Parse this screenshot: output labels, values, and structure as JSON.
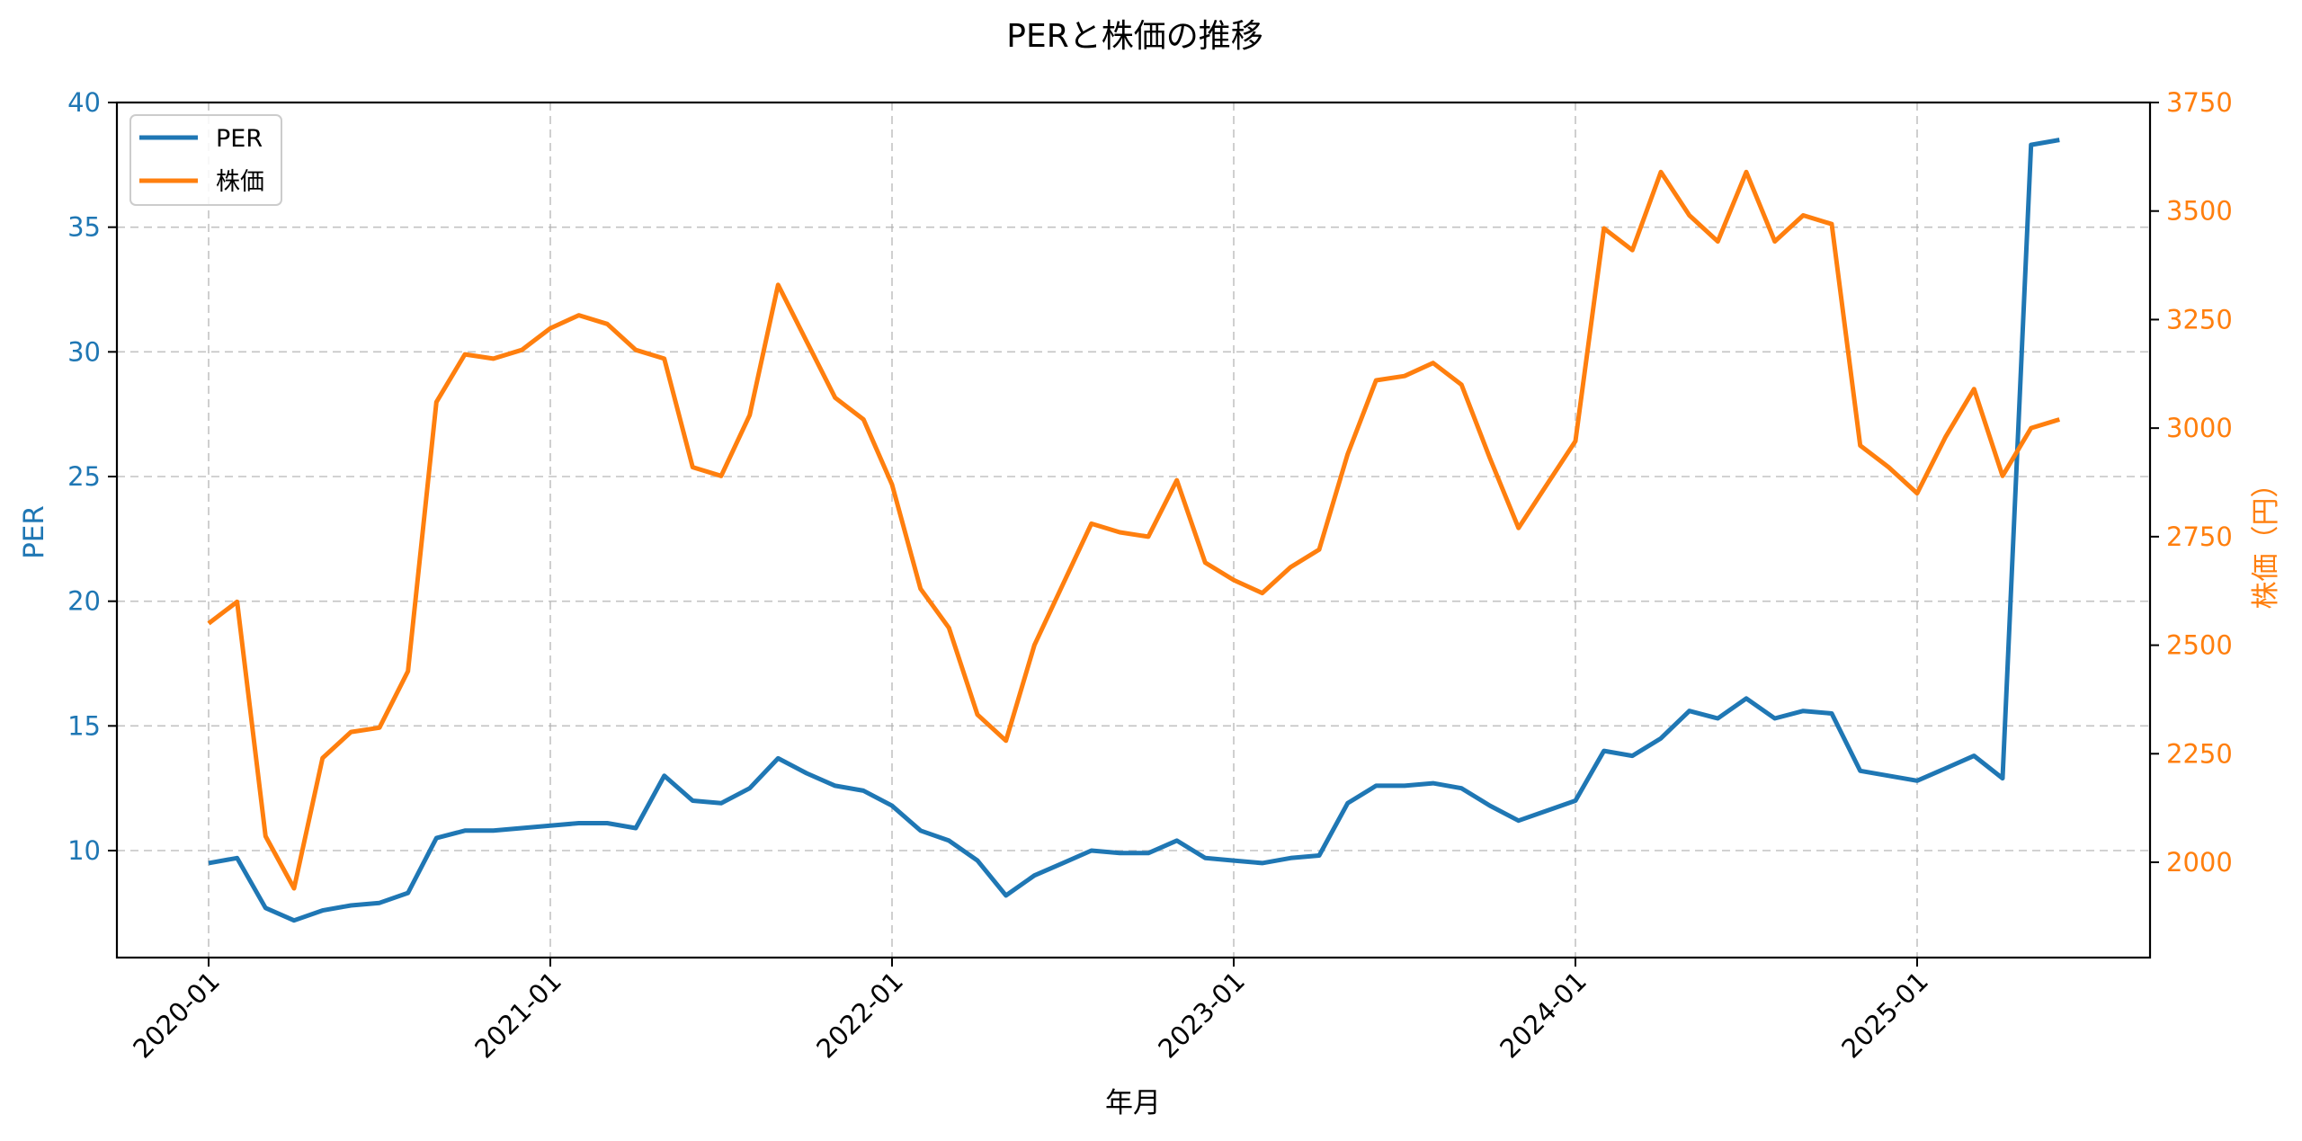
{
  "chart_data": {
    "type": "line",
    "title": "PERと株価の推移",
    "xlabel": "年月",
    "ylabel_left": "PER",
    "ylabel_right": "株価（円）",
    "x_tick_labels": [
      "2020-01",
      "2021-01",
      "2022-01",
      "2023-01",
      "2024-01",
      "2025-01"
    ],
    "y_left_ticks": [
      10,
      15,
      20,
      25,
      30,
      35,
      40
    ],
    "y_right_ticks": [
      2000,
      2250,
      2500,
      2750,
      3000,
      3250,
      3500,
      3750
    ],
    "ylim_left": [
      5.8,
      40
    ],
    "ylim_right": [
      1860,
      3750
    ],
    "grid": true,
    "legend_position": "upper left",
    "x": [
      "2020-01",
      "2020-02",
      "2020-03",
      "2020-04",
      "2020-05",
      "2020-06",
      "2020-07",
      "2020-08",
      "2020-09",
      "2020-10",
      "2020-11",
      "2020-12",
      "2021-01",
      "2021-02",
      "2021-03",
      "2021-04",
      "2021-05",
      "2021-06",
      "2021-07",
      "2021-08",
      "2021-09",
      "2021-10",
      "2021-11",
      "2021-12",
      "2022-01",
      "2022-02",
      "2022-03",
      "2022-04",
      "2022-05",
      "2022-06",
      "2022-07",
      "2022-08",
      "2022-09",
      "2022-10",
      "2022-11",
      "2022-12",
      "2023-01",
      "2023-02",
      "2023-03",
      "2023-04",
      "2023-05",
      "2023-06",
      "2023-07",
      "2023-08",
      "2023-09",
      "2023-10",
      "2023-11",
      "2023-12",
      "2024-01",
      "2024-02",
      "2024-03",
      "2024-04",
      "2024-05",
      "2024-06",
      "2024-07",
      "2024-08",
      "2024-09",
      "2024-10",
      "2024-11",
      "2024-12",
      "2025-01",
      "2025-02",
      "2025-03",
      "2025-04",
      "2025-05",
      "2025-06"
    ],
    "series": [
      {
        "name": "PER",
        "axis": "left",
        "color": "#1f77b4",
        "values": [
          9.5,
          9.7,
          7.7,
          7.2,
          7.6,
          7.8,
          7.9,
          8.3,
          10.5,
          10.8,
          10.8,
          10.9,
          11.0,
          11.1,
          11.1,
          10.9,
          13.0,
          12.0,
          11.9,
          12.5,
          13.7,
          13.1,
          12.6,
          12.4,
          11.8,
          10.8,
          10.4,
          9.6,
          8.2,
          9.0,
          9.5,
          10.0,
          9.9,
          9.9,
          10.4,
          9.7,
          9.6,
          9.5,
          9.7,
          9.8,
          11.9,
          12.6,
          12.6,
          12.7,
          12.5,
          11.8,
          11.2,
          11.6,
          12.0,
          14.0,
          13.8,
          14.5,
          15.6,
          15.3,
          16.1,
          15.3,
          15.6,
          15.5,
          13.2,
          13.0,
          12.8,
          13.3,
          13.8,
          12.9,
          38.3,
          38.5
        ]
      },
      {
        "name": "株価",
        "axis": "right",
        "color": "#ff7f0e",
        "values": [
          2550,
          2600,
          2060,
          1940,
          2240,
          2300,
          2310,
          2440,
          3060,
          3170,
          3160,
          3180,
          3230,
          3260,
          3240,
          3180,
          3160,
          2910,
          2890,
          3030,
          3330,
          3200,
          3070,
          3020,
          2870,
          2630,
          2540,
          2340,
          2280,
          2500,
          2640,
          2780,
          2760,
          2750,
          2880,
          2690,
          2650,
          2620,
          2680,
          2720,
          2940,
          3110,
          3120,
          3150,
          3100,
          2930,
          2770,
          2870,
          2970,
          3460,
          3410,
          3590,
          3490,
          3430,
          3590,
          3430,
          3490,
          3470,
          2960,
          2910,
          2850,
          2980,
          3090,
          2890,
          3000,
          3020
        ]
      }
    ]
  },
  "colors": {
    "left_axis": "#1f77b4",
    "right_axis": "#ff7f0e",
    "grid": "#b0b0b0"
  }
}
